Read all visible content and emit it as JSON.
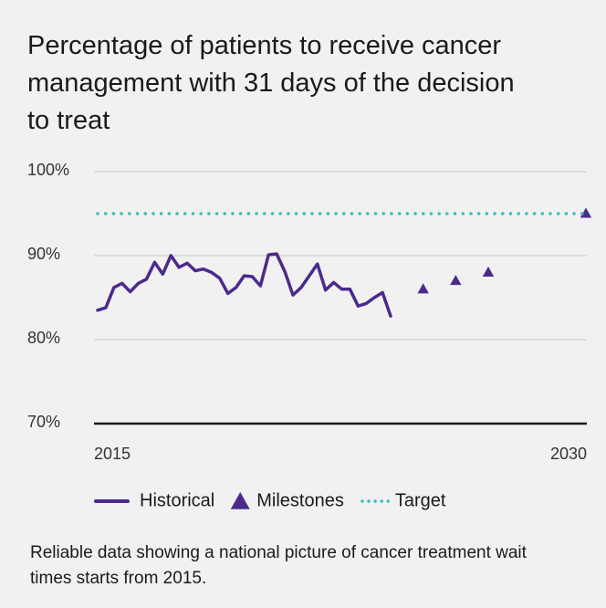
{
  "chart_data": {
    "type": "line",
    "title": "Percentage of patients to receive cancer management with 31 days of the decision to treat",
    "xlim": [
      2015,
      2030
    ],
    "xticks": [
      2015,
      2030
    ],
    "ylim": [
      70,
      100
    ],
    "yticks": [
      {
        "value": 70,
        "label": "70%"
      },
      {
        "value": 80,
        "label": "80%"
      },
      {
        "value": 90,
        "label": "90%"
      },
      {
        "value": 100,
        "label": "100%"
      }
    ],
    "grid": true,
    "series": [
      {
        "name": "Historical",
        "color": "#4b2a8c",
        "x": [
          2015,
          2015.25,
          2015.5,
          2015.75,
          2016,
          2016.25,
          2016.5,
          2016.75,
          2017,
          2017.25,
          2017.5,
          2017.75,
          2018,
          2018.25,
          2018.5,
          2018.75,
          2019,
          2019.25,
          2019.5,
          2019.75,
          2020,
          2020.25,
          2020.5,
          2020.75,
          2021,
          2021.25,
          2021.5,
          2021.75,
          2022,
          2022.25,
          2022.5,
          2022.75,
          2023,
          2023.25,
          2023.5,
          2023.75,
          2024
        ],
        "values": [
          83.5,
          83.8,
          86.2,
          86.7,
          85.7,
          86.7,
          87.2,
          89.2,
          87.8,
          90.0,
          88.6,
          89.1,
          88.2,
          88.4,
          88.0,
          87.3,
          85.5,
          86.2,
          87.6,
          87.5,
          86.4,
          90.1,
          90.2,
          88.1,
          85.3,
          86.2,
          87.6,
          89.0,
          85.9,
          86.8,
          86.0,
          86.0,
          84.0,
          84.3,
          85.0,
          85.6,
          82.8
        ]
      },
      {
        "name": "Milestones",
        "color": "#4b2a8c",
        "marker": "triangle",
        "x": [
          2025,
          2026,
          2027,
          2030
        ],
        "values": [
          86,
          87,
          88,
          95
        ]
      },
      {
        "name": "Target",
        "color": "#3dbfc0",
        "dash": "dotted",
        "x": [
          2015,
          2030
        ],
        "values": [
          95,
          95
        ]
      }
    ],
    "note": "Reliable data showing a national picture of cancer treatment wait times starts from 2015."
  }
}
